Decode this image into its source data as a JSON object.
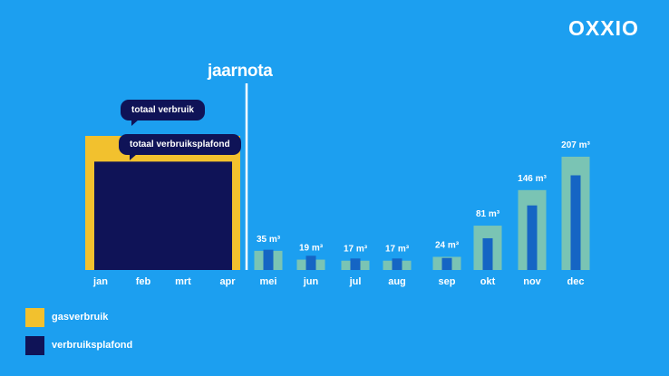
{
  "brand": {
    "logo_text": "OXXIO"
  },
  "annotations": {
    "divider_label": "jaarnota",
    "bubble_total": "totaal verbruik",
    "bubble_plafond": "totaal verbruiksplafond"
  },
  "legend": {
    "items": [
      {
        "label": "gasverbruik",
        "color": "#f2c12e"
      },
      {
        "label": "verbruiksplafond",
        "color": "#0f1357"
      }
    ]
  },
  "colors": {
    "background": "#1c9ff0",
    "gas": "#f2c12e",
    "plafond": "#0f1357",
    "month_usage": "#7fc6b0",
    "month_plafond": "#1565c4",
    "text": "#ffffff"
  },
  "chart_data": {
    "type": "bar",
    "title": "",
    "xlabel": "",
    "ylabel": "",
    "categories": [
      "jan",
      "feb",
      "mrt",
      "apr",
      "mei",
      "jun",
      "jul",
      "aug",
      "sep",
      "okt",
      "nov",
      "dec"
    ],
    "grouped_period": {
      "categories": [
        "jan",
        "feb",
        "mrt",
        "apr"
      ],
      "series": [
        {
          "name": "totaal verbruik",
          "value": 245
        },
        {
          "name": "totaal verbruiksplafond",
          "value": 198
        }
      ]
    },
    "monthly": {
      "categories": [
        "mei",
        "jun",
        "jul",
        "aug",
        "sep",
        "okt",
        "nov",
        "dec"
      ],
      "usage": [
        35,
        19,
        17,
        17,
        24,
        81,
        146,
        207
      ],
      "usage_labels": [
        "35 m³",
        "19 m³",
        "17 m³",
        "17 m³",
        "24 m³",
        "81 m³",
        "146 m³",
        "207 m³"
      ],
      "plafond": [
        37,
        26,
        21,
        21,
        22,
        58,
        118,
        173
      ]
    },
    "ylim": [
      0,
      245
    ],
    "legend_position": "bottom-left",
    "grid": false
  }
}
